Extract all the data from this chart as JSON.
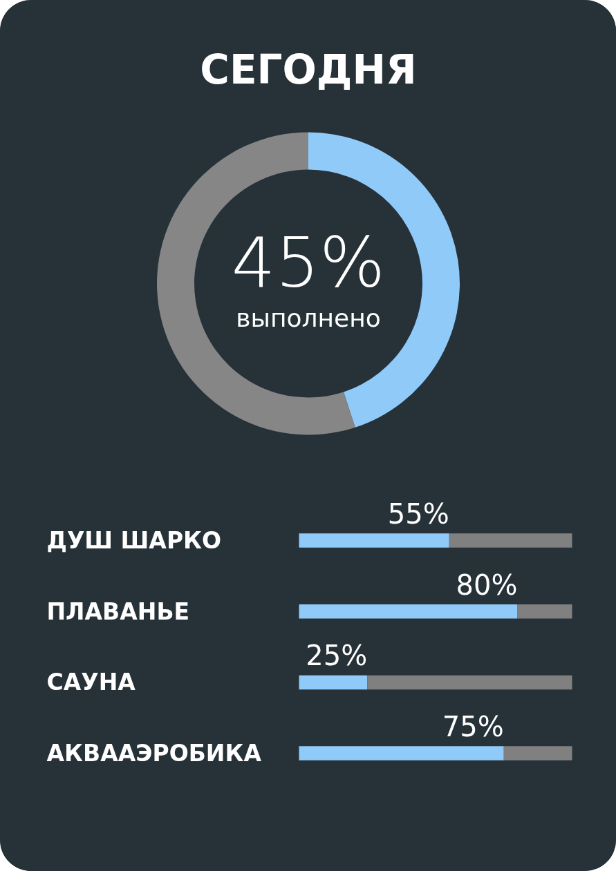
{
  "chart_data": [
    {
      "type": "donut",
      "title": "СЕГОДНЯ",
      "categories": [
        null,
        null
      ],
      "values": [
        45,
        55
      ],
      "colors": [
        "#90caf9",
        "#868686"
      ],
      "annotations": [
        "45%",
        "выполнено"
      ]
    },
    {
      "type": "bar",
      "orientation": "horizontal",
      "stacked": true,
      "categories": [
        "ДУШ ШАРКО",
        "ПЛАВАНЬЕ",
        "САУНА",
        "АКВААЭРОБИКА"
      ],
      "series": [
        {
          "color": "#90caf9",
          "values": [
            55,
            80,
            25,
            75
          ],
          "value_labels": [
            "55%",
            "80%",
            "25%",
            "75%"
          ]
        },
        {
          "color": "#808080",
          "values": [
            45,
            20,
            75,
            25
          ]
        }
      ]
    }
  ]
}
